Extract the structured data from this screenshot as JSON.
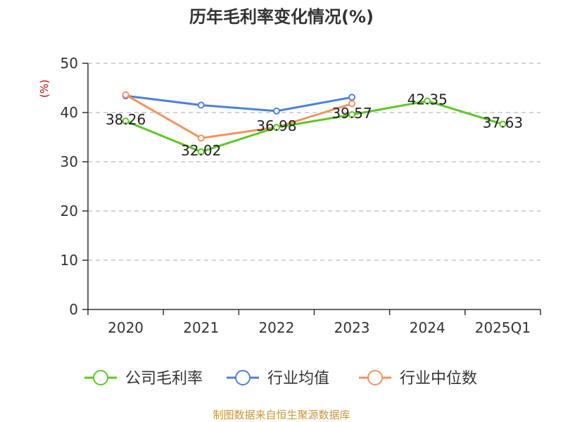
{
  "chart_data": {
    "type": "line",
    "title": "历年毛利率变化情况(%)",
    "unit_label": "(%)",
    "categories": [
      "2020",
      "2021",
      "2022",
      "2023",
      "2024",
      "2025Q1"
    ],
    "ylim": [
      0,
      50
    ],
    "yticks": [
      0,
      10,
      20,
      30,
      40,
      50
    ],
    "grid": true,
    "legend_placement": "bottom",
    "series": [
      {
        "name": "公司毛利率",
        "color": "#5dc728",
        "values": [
          38.26,
          32.02,
          36.98,
          39.57,
          42.35,
          37.63
        ],
        "labels": [
          "38.26",
          "32.02",
          "36.98",
          "39.57",
          "42.35",
          "37.63"
        ]
      },
      {
        "name": "行业均值",
        "color": "#4e80dc",
        "values": [
          43.4,
          41.5,
          40.3,
          43.1,
          null,
          null
        ]
      },
      {
        "name": "行业中位数",
        "color": "#f29461",
        "values": [
          43.6,
          34.8,
          37.0,
          41.8,
          null,
          null
        ]
      }
    ]
  },
  "source_text": "制图数据来自恒生聚源数据库",
  "colors": {
    "axis": "#333333",
    "grid": "#bbbbbb",
    "unit": "#cc0000",
    "source": "#c8963c"
  }
}
